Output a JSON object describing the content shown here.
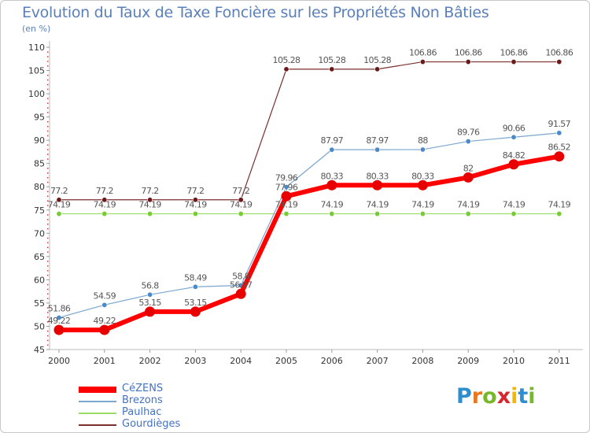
{
  "title": "Evolution du Taux de Taxe Foncière sur les Propriétés Non Bâties",
  "subtitle": "(en %)",
  "logo": {
    "letters": [
      "P",
      "r",
      "o",
      "x",
      "i",
      "t",
      "i"
    ],
    "colors": [
      "#2e8fd0",
      "#e8761c",
      "#76b82a",
      "#d6262e",
      "#f2b705",
      "#2e8fd0",
      "#76b82a"
    ]
  },
  "chart_data": {
    "type": "line",
    "title": "Evolution du Taux de Taxe Foncière sur les Propriétés Non Bâties",
    "ylabel": "(en %)",
    "xlabel": "",
    "ylim": [
      45,
      110
    ],
    "yticks": [
      45,
      50,
      55,
      60,
      65,
      70,
      75,
      80,
      85,
      90,
      95,
      100,
      105,
      110
    ],
    "categories": [
      "2000",
      "2001",
      "2002",
      "2003",
      "2004",
      "2005",
      "2006",
      "2007",
      "2008",
      "2009",
      "2010",
      "2011"
    ],
    "grid": false,
    "legend_position": "bottom-left",
    "series": [
      {
        "name": "Gourdièges",
        "color": "#7a2e2e",
        "marker": "#6b1a1a",
        "width": 1.2,
        "values": [
          77.2,
          77.2,
          77.2,
          77.2,
          77.2,
          105.28,
          105.28,
          105.28,
          106.86,
          106.86,
          106.86,
          106.86
        ],
        "labels": [
          "77.2",
          "77.2",
          "77.2",
          "77.2",
          "77.2",
          "105.28",
          "105.28",
          "105.28",
          "106.86",
          "106.86",
          "106.86",
          "106.86"
        ]
      },
      {
        "name": "Paulhac",
        "color": "#99dd66",
        "marker": "#77cc33",
        "width": 1.2,
        "values": [
          74.19,
          74.19,
          74.19,
          74.19,
          74.19,
          74.19,
          74.19,
          74.19,
          74.19,
          74.19,
          74.19,
          74.19
        ],
        "labels": [
          "74.19",
          "74.19",
          "74.19",
          "74.19",
          "74.19",
          "74.19",
          "74.19",
          "74.19",
          "74.19",
          "74.19",
          "74.19",
          "74.19"
        ]
      },
      {
        "name": "Brezons",
        "color": "#7aa6cf",
        "marker": "#4a8ac9",
        "width": 1.2,
        "values": [
          51.86,
          54.59,
          56.8,
          58.49,
          58.8,
          79.96,
          87.97,
          87.97,
          88,
          89.76,
          90.66,
          91.57
        ],
        "labels": [
          "51.86",
          "54.59",
          "56.8",
          "58.49",
          "58.8",
          "79.96",
          "87.97",
          "87.97",
          "88",
          "89.76",
          "90.66",
          "91.57"
        ]
      },
      {
        "name": "CéZENS",
        "color": "#ff0000",
        "marker": "#e60000",
        "width": 6,
        "values": [
          49.22,
          49.22,
          53.15,
          53.15,
          56.97,
          77.96,
          80.33,
          80.33,
          80.33,
          82,
          84.82,
          86.52
        ],
        "labels": [
          "49.22",
          "49.22",
          "53.15",
          "53.15",
          "56.97",
          "77.96",
          "80.33",
          "80.33",
          "80.33",
          "82",
          "84.82",
          "86.52"
        ]
      }
    ],
    "legend": [
      "CéZENS",
      "Brezons",
      "Paulhac",
      "Gourdièges"
    ]
  }
}
